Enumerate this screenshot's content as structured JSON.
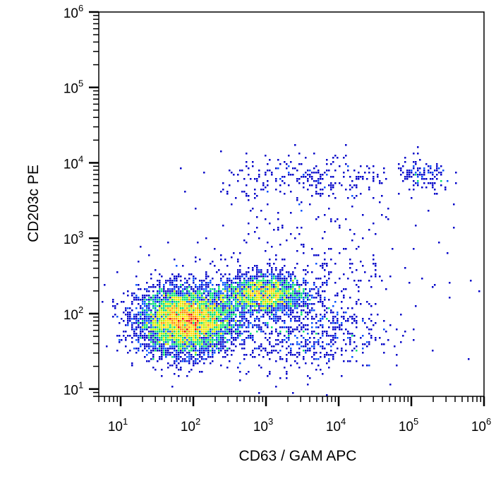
{
  "chart_data": {
    "type": "scatter",
    "subtype": "flow-cytometry density dot plot",
    "xlabel": "CD63  / GAM APC",
    "ylabel": "CD203c  PE",
    "xscale": "log",
    "yscale": "log",
    "xlim": [
      5,
      1000000
    ],
    "ylim": [
      8,
      1000000
    ],
    "x_tick_labels": [
      {
        "base": "10",
        "exp": "1",
        "value": 10
      },
      {
        "base": "10",
        "exp": "2",
        "value": 100
      },
      {
        "base": "10",
        "exp": "3",
        "value": 1000
      },
      {
        "base": "10",
        "exp": "4",
        "value": 10000
      },
      {
        "base": "10",
        "exp": "5",
        "value": 100000
      },
      {
        "base": "10",
        "exp": "6",
        "value": 1000000
      }
    ],
    "y_tick_labels": [
      {
        "base": "10",
        "exp": "1",
        "value": 10
      },
      {
        "base": "10",
        "exp": "2",
        "value": 100
      },
      {
        "base": "10",
        "exp": "3",
        "value": 1000
      },
      {
        "base": "10",
        "exp": "4",
        "value": 10000
      },
      {
        "base": "10",
        "exp": "5",
        "value": 100000
      },
      {
        "base": "10",
        "exp": "6",
        "value": 1000000
      }
    ],
    "populations": [
      {
        "center": [
          80,
          80
        ],
        "spread_decades": [
          0.33,
          0.22
        ],
        "count": 5200
      },
      {
        "center": [
          900,
          180
        ],
        "spread_decades": [
          0.3,
          0.13
        ],
        "count": 1900
      },
      {
        "center": [
          3000,
          60
        ],
        "spread_decades": [
          0.55,
          0.28
        ],
        "count": 700
      },
      {
        "center": [
          4000,
          6000
        ],
        "spread_decades": [
          0.6,
          0.17
        ],
        "count": 260
      },
      {
        "center": [
          150000,
          6500
        ],
        "spread_decades": [
          0.2,
          0.12
        ],
        "count": 120
      },
      {
        "center": [
          3000,
          400
        ],
        "spread_decades": [
          0.9,
          0.4
        ],
        "count": 300
      }
    ],
    "density_colors": [
      "#0000c8",
      "#0050ff",
      "#00c8ff",
      "#00e070",
      "#b4f000",
      "#ffe000",
      "#ff8c00",
      "#ee0000"
    ],
    "grid": false,
    "legend": "none"
  }
}
